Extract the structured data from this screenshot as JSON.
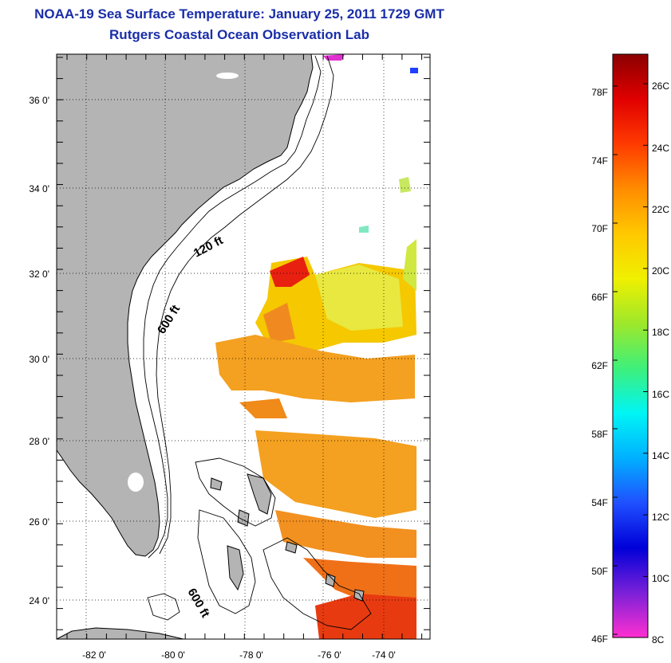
{
  "header": {
    "title": "NOAA-19 Sea Surface Temperature:  January 25, 2011 1729 GMT",
    "subtitle": "Rutgers Coastal Ocean Observation Lab"
  },
  "map": {
    "lat_labels": [
      "36 0'",
      "34 0'",
      "32 0'",
      "30 0'",
      "28 0'",
      "26 0'",
      "24 0'"
    ],
    "lon_labels": [
      "-82 0'",
      "-80 0'",
      "-78 0'",
      "-76 0'",
      "-74 0'"
    ],
    "contour_labels": {
      "shelf_120": "120 ft",
      "shelf_600_north": "600 ft",
      "shelf_600_south": "600 ft"
    },
    "colors": {
      "land": "#b4b4b4",
      "ocean": "#ffffff",
      "grid": "#000000"
    }
  },
  "colorbar": {
    "fahrenheit_labels": [
      "78F",
      "74F",
      "70F",
      "66F",
      "62F",
      "58F",
      "54F",
      "50F",
      "46F"
    ],
    "celsius_labels": [
      "26C",
      "24C",
      "22C",
      "20C",
      "18C",
      "16C",
      "14C",
      "12C",
      "10C",
      "8C"
    ],
    "gradient_colors": [
      "#8b0000",
      "#e00000",
      "#ff3a00",
      "#ff8c00",
      "#ffc800",
      "#f0f000",
      "#9ee82a",
      "#3ef07a",
      "#00f5f5",
      "#00b0ff",
      "#2050ff",
      "#0000d8",
      "#7a20d8",
      "#ff30d0"
    ]
  }
}
